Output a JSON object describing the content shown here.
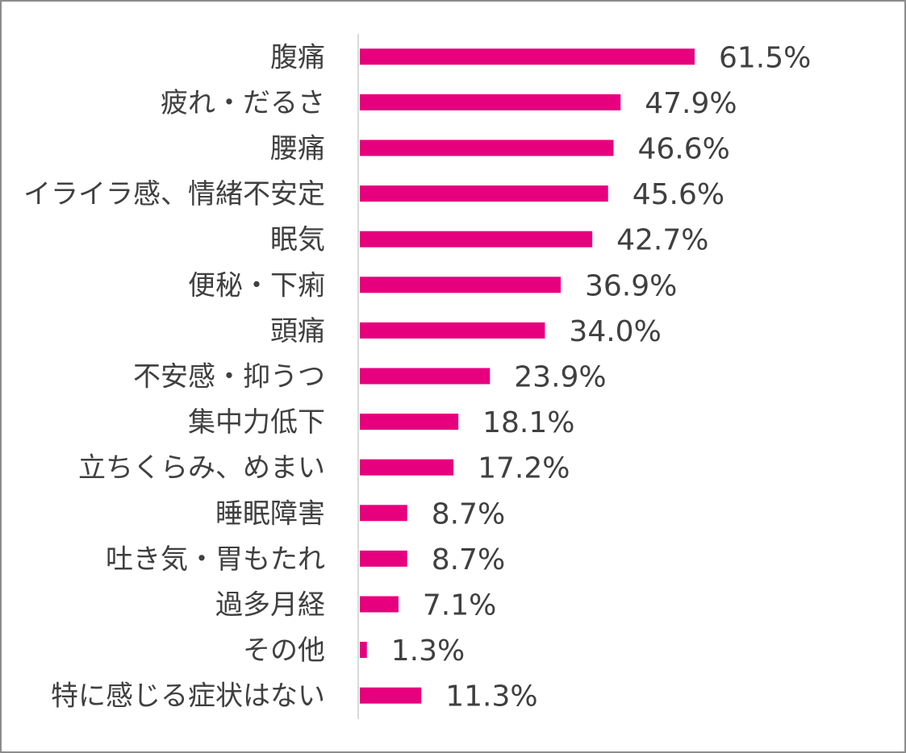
{
  "chart_data": {
    "type": "bar",
    "orientation": "horizontal",
    "title": "",
    "xlabel": "",
    "ylabel": "",
    "xlim": [
      0,
      61.5
    ],
    "grid": false,
    "legend": "none",
    "bar_color": "#e6007e",
    "categories": [
      "腹痛",
      "疲れ・だるさ",
      "腰痛",
      "イライラ感、情緒不安定",
      "眠気",
      "便秘・下痢",
      "頭痛",
      "不安感・抑うつ",
      "集中力低下",
      "立ちくらみ、めまい",
      "睡眠障害",
      "吐き気・胃もたれ",
      "過多月経",
      "その他",
      "特に感じる症状はない"
    ],
    "values": [
      61.5,
      47.9,
      46.6,
      45.6,
      42.7,
      36.9,
      34.0,
      23.9,
      18.1,
      17.2,
      8.7,
      8.7,
      7.1,
      1.3,
      11.3
    ],
    "value_labels": [
      "61.5%",
      "47.9%",
      "46.6%",
      "45.6%",
      "42.7%",
      "36.9%",
      "34.0%",
      "23.9%",
      "18.1%",
      "17.2%",
      "8.7%",
      "8.7%",
      "7.1%",
      "1.3%",
      "11.3%"
    ]
  }
}
